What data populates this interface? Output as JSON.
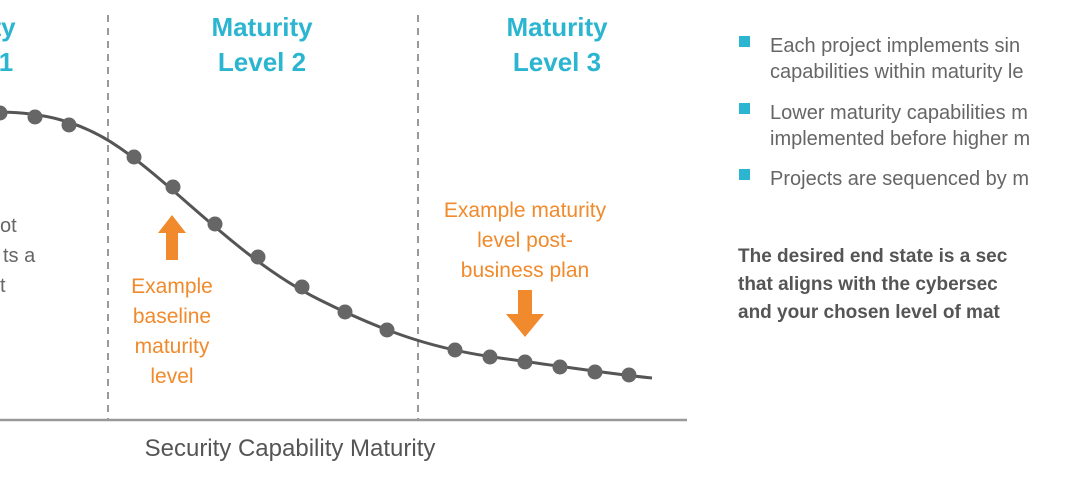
{
  "levels": [
    {
      "lines": [
        "ty",
        "1"
      ]
    },
    {
      "lines": [
        "Maturity",
        "Level 2"
      ]
    },
    {
      "lines": [
        "Maturity",
        "Level 3"
      ]
    }
  ],
  "left_text": [
    "ot",
    "ts a",
    "t"
  ],
  "annotations": {
    "baseline": [
      "Example",
      "baseline",
      "maturity",
      "level"
    ],
    "post_plan": [
      "Example maturity",
      "level post-",
      "business plan"
    ]
  },
  "x_axis_label": "Security Capability Maturity",
  "bullets": [
    [
      "Each project implements sin",
      "capabilities within maturity le"
    ],
    [
      "Lower maturity capabilities m",
      "implemented before higher m"
    ],
    [
      "Projects are sequenced by m"
    ]
  ],
  "conclusion": [
    "The desired end state is a sec",
    "that aligns with the cybersec",
    "and your chosen level of mat"
  ]
}
